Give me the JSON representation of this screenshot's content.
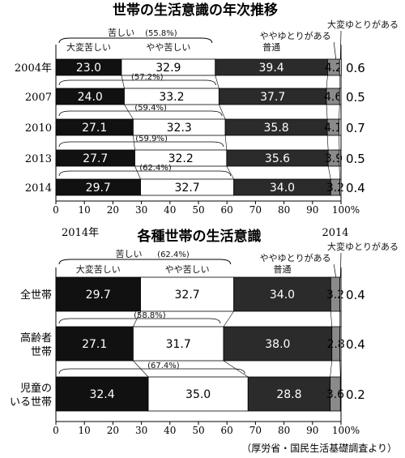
{
  "colors": {
    "very_hard": "#111111",
    "somewhat_hard": "#ffffff",
    "normal": "#2b2b2b",
    "somewhat_easy": "#8a8a8a",
    "very_easy": "#d6d6d6",
    "stroke": "#000000"
  },
  "chart_data": [
    {
      "type": "bar",
      "stacked": true,
      "orientation": "horizontal",
      "title": "世帯の生活意識の年次推移",
      "header_label": "",
      "categories": [
        "2004年",
        "2007",
        "2010",
        "2013",
        "2014"
      ],
      "series": [
        {
          "name": "大変苦しい",
          "values": [
            23.0,
            24.0,
            27.1,
            27.7,
            29.7
          ]
        },
        {
          "name": "やや苦しい",
          "values": [
            32.9,
            33.2,
            32.3,
            32.2,
            32.7
          ]
        },
        {
          "name": "普通",
          "values": [
            39.4,
            37.7,
            35.8,
            35.6,
            34.0
          ]
        },
        {
          "name": "ややゆとりがある",
          "values": [
            4.2,
            4.6,
            4.1,
            3.9,
            3.2
          ]
        },
        {
          "name": "大変ゆとりがある",
          "values": [
            0.6,
            0.5,
            0.7,
            0.5,
            0.4
          ]
        }
      ],
      "group_label": "苦しい",
      "hard_totals": [
        "(55.8%)",
        "(57.2%)",
        "(59.4%)",
        "(59.9%)",
        "(62.4%)"
      ],
      "xlim": [
        0,
        100
      ],
      "x_ticks": [
        "0",
        "10",
        "20",
        "30",
        "40",
        "50",
        "60",
        "70",
        "80",
        "90",
        "100%"
      ]
    },
    {
      "type": "bar",
      "stacked": true,
      "orientation": "horizontal",
      "title": "各種世帯の生活意識",
      "header_label": "2014年",
      "header_label_right": "2014",
      "categories": [
        "全世帯",
        "高齢者\n世帯",
        "児童の\nいる世帯"
      ],
      "series": [
        {
          "name": "大変苦しい",
          "values": [
            29.7,
            27.1,
            32.4
          ]
        },
        {
          "name": "やや苦しい",
          "values": [
            32.7,
            31.7,
            35.0
          ]
        },
        {
          "name": "普通",
          "values": [
            34.0,
            38.0,
            28.8
          ]
        },
        {
          "name": "ややゆとりがある",
          "values": [
            3.2,
            2.8,
            3.6
          ]
        },
        {
          "name": "大変ゆとりがある",
          "values": [
            0.4,
            0.4,
            0.2
          ]
        }
      ],
      "group_label": "苦しい",
      "group_total": "(62.4%)",
      "hard_totals": [
        "",
        "(58.8%)",
        "(67.4%)"
      ],
      "xlim": [
        0,
        100
      ],
      "x_ticks": [
        "0",
        "10",
        "20",
        "30",
        "40",
        "50",
        "60",
        "70",
        "80",
        "90",
        "100%"
      ]
    }
  ],
  "source": "（厚労省・国民生活基礎調査より）"
}
